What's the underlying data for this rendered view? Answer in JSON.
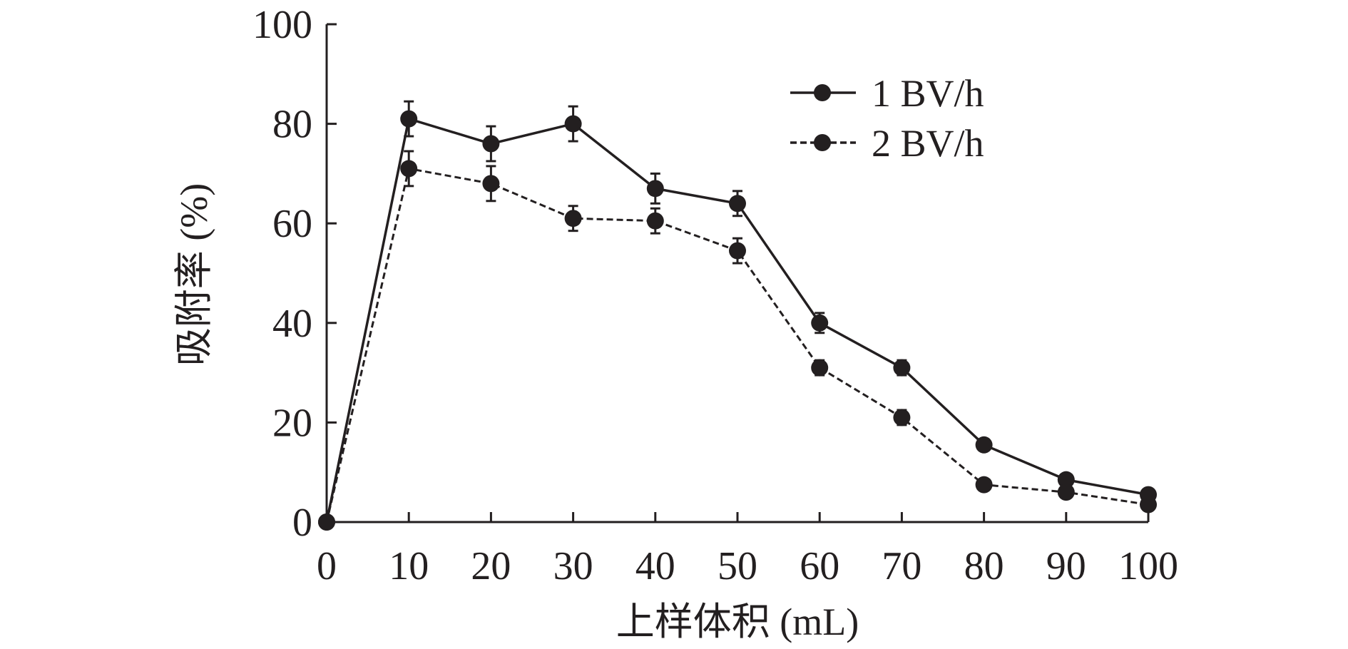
{
  "chart_data": {
    "type": "line",
    "title": "",
    "xlabel": "上样体积 (mL)",
    "ylabel": "吸附率 (%)",
    "xlim": [
      0,
      100
    ],
    "ylim": [
      0,
      100
    ],
    "x": [
      0,
      10,
      20,
      30,
      40,
      50,
      60,
      70,
      80,
      90,
      100
    ],
    "x_ticks": [
      "0",
      "10",
      "20",
      "30",
      "40",
      "50",
      "60",
      "70",
      "80",
      "90",
      "100"
    ],
    "y_ticks": [
      "0",
      "20",
      "40",
      "60",
      "80",
      "100"
    ],
    "grid": false,
    "legend_position": "top-right",
    "series": [
      {
        "name": "1 BV/h",
        "style": "solid",
        "values": [
          0,
          81,
          76,
          80,
          67,
          64,
          40,
          31,
          15.5,
          8.5,
          5.5
        ],
        "errors": [
          0,
          3.5,
          3.5,
          3.5,
          3,
          2.5,
          2,
          1.5,
          1,
          1,
          1
        ]
      },
      {
        "name": "2 BV/h",
        "style": "dashed",
        "values": [
          0,
          71,
          68,
          61,
          60.5,
          54.5,
          31,
          21,
          7.5,
          6,
          3.5
        ],
        "errors": [
          0,
          3.5,
          3.5,
          2.5,
          2.5,
          2.5,
          1.5,
          1.5,
          1,
          1,
          1
        ]
      }
    ],
    "color": "#231f20"
  }
}
